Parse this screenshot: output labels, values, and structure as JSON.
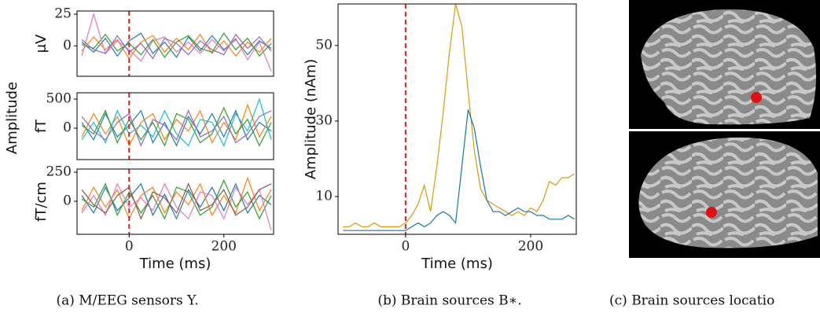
{
  "chart_data": [
    {
      "type": "line",
      "ylabel": "μV",
      "vline": 0,
      "vline_color": "#e02020",
      "x": [
        -100,
        -75,
        -50,
        -25,
        0,
        25,
        50,
        75,
        100,
        125,
        150,
        175,
        200,
        225,
        250,
        275,
        300
      ],
      "xlim": [
        -110,
        305
      ],
      "ylim": [
        -24,
        27.5
      ],
      "yticks": [
        0,
        25
      ],
      "series": [
        {
          "color": "#1f77b4",
          "values": [
            3,
            -5,
            6,
            -8,
            4,
            10,
            -6,
            3,
            -9,
            7,
            -4,
            8,
            -3,
            5,
            -7,
            4,
            -2
          ]
        },
        {
          "color": "#ff7f0e",
          "values": [
            -4,
            7,
            -3,
            5,
            -10,
            3,
            8,
            -5,
            6,
            -3,
            9,
            -6,
            4,
            -8,
            3,
            -5,
            6
          ]
        },
        {
          "color": "#2ca02c",
          "values": [
            1,
            -2,
            9,
            -4,
            2,
            -7,
            5,
            -9,
            3,
            8,
            -2,
            -5,
            10,
            -3,
            6,
            -8,
            2
          ]
        },
        {
          "color": "#e377c2",
          "values": [
            -8,
            25,
            -6,
            4,
            -3,
            -12,
            4,
            7,
            -5,
            3,
            -6,
            5,
            -4,
            6,
            -11,
            3,
            -20
          ]
        },
        {
          "color": "#9467bd",
          "values": [
            5,
            -3,
            -6,
            8,
            -5,
            2,
            -10,
            6,
            2,
            -7,
            4,
            -3,
            -7,
            9,
            -2,
            7,
            -4
          ]
        }
      ]
    },
    {
      "type": "line",
      "ylabel": "fT",
      "supylabel": "Amplitude",
      "vline": 0,
      "vline_color": "#e02020",
      "x": [
        -100,
        -75,
        -50,
        -25,
        0,
        25,
        50,
        75,
        100,
        125,
        150,
        175,
        200,
        225,
        250,
        275,
        300
      ],
      "xlim": [
        -110,
        305
      ],
      "ylim": [
        -540,
        608
      ],
      "yticks": [
        0,
        500
      ],
      "series": [
        {
          "color": "#1f77b4",
          "values": [
            100,
            -200,
            250,
            -150,
            50,
            300,
            -250,
            100,
            -300,
            200,
            -100,
            250,
            -150,
            300,
            -200,
            100,
            -50
          ]
        },
        {
          "color": "#ff7f0e",
          "values": [
            -150,
            250,
            -100,
            200,
            -300,
            100,
            250,
            -200,
            150,
            -50,
            300,
            -250,
            100,
            -200,
            400,
            -150,
            200
          ]
        },
        {
          "color": "#2ca02c",
          "values": [
            50,
            -100,
            300,
            -250,
            150,
            -200,
            100,
            -300,
            250,
            150,
            -250,
            -100,
            350,
            -100,
            150,
            -300,
            100
          ]
        },
        {
          "color": "#17becf",
          "values": [
            -200,
            100,
            -250,
            300,
            -100,
            50,
            -150,
            300,
            -100,
            -300,
            150,
            100,
            -300,
            250,
            -50,
            500,
            -200
          ]
        },
        {
          "color": "#9467bd",
          "values": [
            200,
            -50,
            -200,
            100,
            250,
            -300,
            150,
            50,
            -200,
            300,
            -150,
            -50,
            200,
            -250,
            -100,
            200,
            300
          ]
        }
      ]
    },
    {
      "type": "line",
      "ylabel": "fT/cm",
      "xlabel": "Time (ms)",
      "vline": 0,
      "vline_color": "#e02020",
      "x": [
        -100,
        -75,
        -50,
        -25,
        0,
        25,
        50,
        75,
        100,
        125,
        150,
        175,
        200,
        225,
        250,
        275,
        300
      ],
      "xlim": [
        -110,
        305
      ],
      "ylim": [
        -284,
        277
      ],
      "yticks": [
        0,
        250
      ],
      "xticks": [
        0,
        200
      ],
      "series": [
        {
          "color": "#1f77b4",
          "values": [
            50,
            -100,
            120,
            -80,
            30,
            150,
            -120,
            60,
            -150,
            100,
            -50,
            120,
            -80,
            150,
            -100,
            50,
            -30
          ]
        },
        {
          "color": "#ff7f0e",
          "values": [
            -80,
            120,
            -50,
            100,
            -150,
            50,
            120,
            -100,
            80,
            -30,
            150,
            -120,
            50,
            -100,
            200,
            -80,
            100
          ]
        },
        {
          "color": "#2ca02c",
          "values": [
            20,
            -50,
            150,
            -120,
            80,
            -100,
            50,
            -150,
            120,
            80,
            -120,
            -50,
            180,
            -50,
            80,
            -150,
            50
          ]
        },
        {
          "color": "#e377c2",
          "values": [
            -100,
            50,
            -120,
            150,
            -50,
            30,
            -80,
            150,
            -50,
            -150,
            80,
            50,
            -150,
            120,
            -30,
            100,
            -250
          ]
        },
        {
          "color": "#8c564b",
          "values": [
            100,
            -30,
            -100,
            50,
            120,
            -150,
            80,
            30,
            -100,
            150,
            -80,
            -30,
            100,
            -120,
            -50,
            100,
            150
          ]
        }
      ]
    },
    {
      "type": "line",
      "ylabel": "Amplitude (nAm)",
      "xlabel": "Time (ms)",
      "vline": 0,
      "vline_color": "#e02020",
      "x": [
        -100,
        -90,
        -80,
        -70,
        -60,
        -50,
        -40,
        -30,
        -20,
        -10,
        0,
        10,
        20,
        30,
        40,
        50,
        60,
        70,
        80,
        90,
        100,
        110,
        120,
        130,
        140,
        150,
        160,
        170,
        180,
        190,
        200,
        210,
        220,
        230,
        240,
        250,
        260,
        270
      ],
      "xlim": [
        -108,
        273
      ],
      "ylim": [
        0,
        61
      ],
      "yticks": [
        10,
        30,
        50
      ],
      "xticks": [
        0,
        200
      ],
      "series": [
        {
          "color": "#d99a0b",
          "values": [
            2,
            2,
            3,
            2,
            2,
            3,
            2,
            2,
            2,
            2,
            3,
            5,
            8,
            13,
            6,
            18,
            32,
            48,
            61,
            55,
            38,
            22,
            12,
            9,
            8,
            7,
            6,
            5,
            6,
            5,
            7,
            6,
            9,
            14,
            13,
            15,
            15,
            16
          ]
        },
        {
          "color": "#157aa0",
          "values": [
            1,
            1,
            1,
            1,
            1,
            1,
            1,
            1,
            1,
            1,
            1,
            2,
            3,
            2,
            3,
            5,
            6,
            5,
            3,
            18,
            33,
            28,
            18,
            9,
            6,
            6,
            5,
            6,
            7,
            6,
            6,
            5,
            5,
            4,
            4,
            4,
            5,
            4
          ]
        }
      ]
    }
  ],
  "captions": [
    "(a) M/EEG sensors Y.",
    "(b) Brain sources B∗.",
    "(c) Brain sources locatio"
  ]
}
